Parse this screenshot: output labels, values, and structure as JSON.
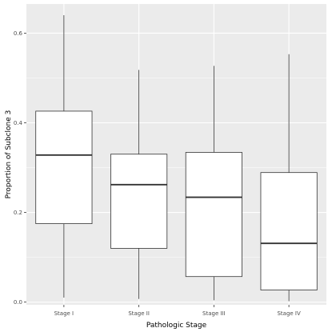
{
  "chart_data": {
    "type": "boxplot",
    "title": "",
    "xlabel": "Pathologic Stage",
    "ylabel": "Proportion of Subclone 3",
    "ylim": [
      -0.006,
      0.665
    ],
    "yticks": [
      0.0,
      0.2,
      0.4,
      0.6
    ],
    "ytick_labels": [
      "0.0",
      "0.2",
      "0.4",
      "0.6"
    ],
    "categories": [
      "Stage I",
      "Stage II",
      "Stage III",
      "Stage IV"
    ],
    "boxes": [
      {
        "category": "Stage I",
        "min": 0.01,
        "q1": 0.175,
        "median": 0.328,
        "q3": 0.426,
        "max": 0.64
      },
      {
        "category": "Stage II",
        "min": 0.007,
        "q1": 0.12,
        "median": 0.262,
        "q3": 0.33,
        "max": 0.518
      },
      {
        "category": "Stage III",
        "min": 0.004,
        "q1": 0.057,
        "median": 0.234,
        "q3": 0.334,
        "max": 0.527
      },
      {
        "category": "Stage IV",
        "min": 0.002,
        "q1": 0.027,
        "median": 0.131,
        "q3": 0.289,
        "max": 0.553
      }
    ],
    "grid": true,
    "colors": {
      "panel": "#ebebeb",
      "grid": "#ffffff",
      "box_fill": "#ffffff",
      "box_line": "#333333",
      "text": "#4d4d4d"
    }
  }
}
